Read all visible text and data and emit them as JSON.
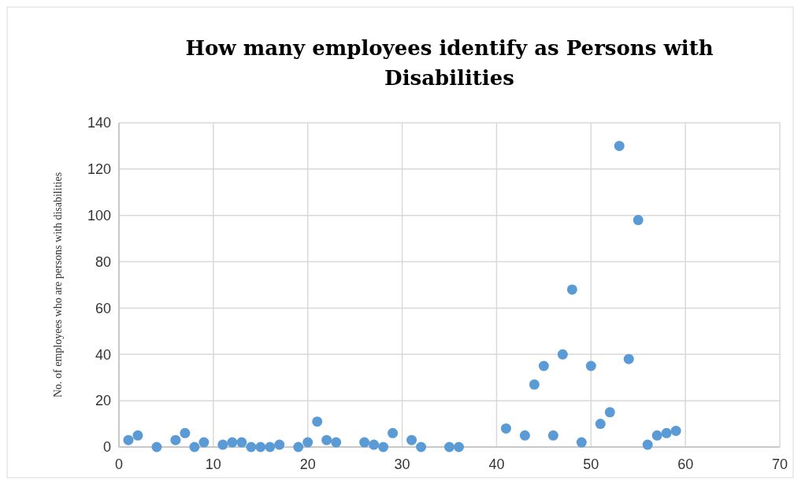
{
  "chart_data": {
    "type": "scatter",
    "title": "How many employees identify as Persons with Disabilities",
    "ylabel": "No. of employees  who are persons with disabilities",
    "x": [
      1,
      2,
      4,
      6,
      7,
      8,
      9,
      11,
      12,
      13,
      14,
      15,
      16,
      17,
      19,
      20,
      21,
      22,
      23,
      26,
      27,
      28,
      29,
      31,
      32,
      35,
      36,
      41,
      43,
      44,
      45,
      46,
      47,
      48,
      49,
      50,
      51,
      52,
      53,
      54,
      55,
      56,
      57,
      58,
      59
    ],
    "values": [
      3,
      5,
      0,
      3,
      6,
      0,
      2,
      1,
      2,
      2,
      0,
      0,
      0,
      1,
      0,
      2,
      11,
      3,
      2,
      2,
      1,
      0,
      6,
      3,
      0,
      0,
      0,
      8,
      5,
      27,
      35,
      5,
      40,
      68,
      2,
      35,
      10,
      15,
      130,
      38,
      98,
      1,
      5,
      6,
      7
    ],
    "color": "#5b9bd5",
    "marker": "circle",
    "grid": true,
    "xlim": [
      0,
      70
    ],
    "xticks": [
      0,
      10,
      20,
      30,
      40,
      50,
      60,
      70
    ],
    "ylim": [
      0,
      140
    ],
    "yticks": [
      0,
      20,
      40,
      60,
      80,
      100,
      120,
      140
    ]
  }
}
